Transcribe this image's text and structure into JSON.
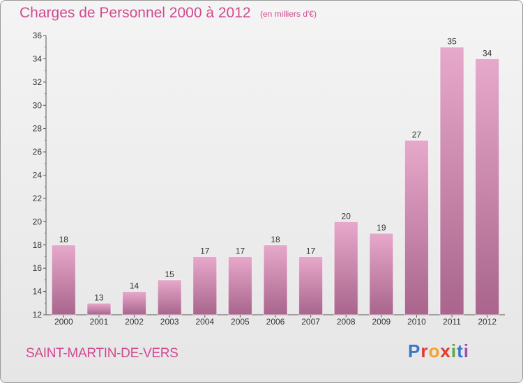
{
  "header": {
    "title": "Charges de Personnel 2000 à 2012",
    "subtitle": "(en milliers d'€)"
  },
  "footer": {
    "commune": "SAINT-MARTIN-DE-VERS",
    "logo_text": "Proxiti"
  },
  "colors": {
    "accent": "#d14a8f",
    "bar_light": "#e7a9cb",
    "bar_dark": "#a9658c"
  },
  "chart_data": {
    "type": "bar",
    "title": "Charges de Personnel 2000 à 2012",
    "subtitle": "(en milliers d'€)",
    "xlabel": "",
    "ylabel": "",
    "categories": [
      "2000",
      "2001",
      "2002",
      "2003",
      "2004",
      "2005",
      "2006",
      "2007",
      "2008",
      "2009",
      "2010",
      "2011",
      "2012"
    ],
    "values": [
      18,
      13,
      14,
      15,
      17,
      17,
      18,
      17,
      20,
      19,
      27,
      35,
      34
    ],
    "ylim": [
      12,
      36
    ],
    "yticks": [
      12,
      14,
      16,
      18,
      20,
      22,
      24,
      26,
      28,
      30,
      32,
      34,
      36
    ],
    "grid": false,
    "legend": "none"
  }
}
